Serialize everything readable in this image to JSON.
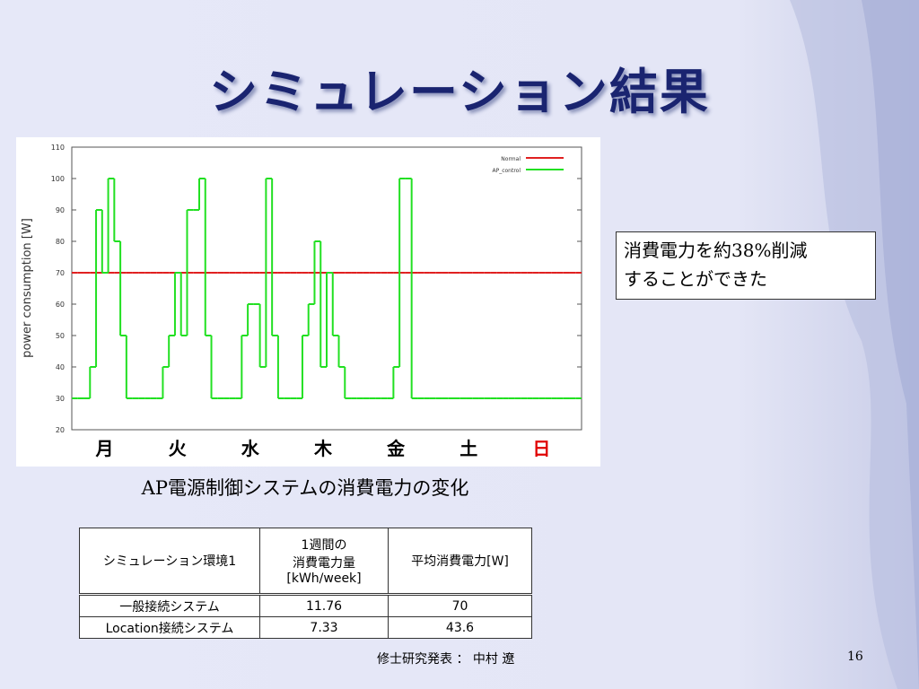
{
  "title": "シミュレーション結果",
  "chart_data": {
    "type": "line",
    "ylabel": "power consumption [W]",
    "ylim": [
      20,
      110
    ],
    "yticks": [
      20,
      30,
      40,
      50,
      60,
      70,
      80,
      90,
      100,
      110
    ],
    "x_labels": [
      "月",
      "火",
      "水",
      "木",
      "金",
      "土",
      "日"
    ],
    "x_label_colors": [
      "#000000",
      "#000000",
      "#000000",
      "#000000",
      "#000000",
      "#000000",
      "#e00000"
    ],
    "legend": "top-right",
    "grid": false,
    "series": [
      {
        "name": "Normal",
        "color": "#e02020",
        "values": [
          70,
          70,
          70,
          70,
          70,
          70,
          70,
          70,
          70,
          70,
          70,
          70,
          70,
          70,
          70,
          70,
          70,
          70,
          70,
          70,
          70,
          70,
          70,
          70,
          70,
          70,
          70,
          70,
          70,
          70,
          70,
          70,
          70,
          70,
          70,
          70,
          70,
          70,
          70,
          70,
          70,
          70,
          70,
          70,
          70,
          70,
          70,
          70,
          70,
          70,
          70,
          70,
          70,
          70,
          70,
          70,
          70,
          70,
          70,
          70,
          70,
          70,
          70,
          70,
          70,
          70,
          70,
          70,
          70,
          70,
          70,
          70,
          70,
          70,
          70,
          70,
          70,
          70,
          70,
          70,
          70,
          70,
          70,
          70
        ]
      },
      {
        "name": "AP_control",
        "color": "#22e022",
        "values": [
          30,
          30,
          30,
          40,
          90,
          70,
          100,
          80,
          50,
          30,
          30,
          30,
          30,
          30,
          30,
          40,
          50,
          70,
          50,
          90,
          90,
          100,
          50,
          30,
          30,
          30,
          30,
          30,
          50,
          60,
          60,
          40,
          100,
          50,
          30,
          30,
          30,
          30,
          50,
          60,
          80,
          40,
          70,
          50,
          40,
          30,
          30,
          30,
          30,
          30,
          30,
          30,
          30,
          40,
          100,
          100,
          30,
          30,
          30,
          30,
          30,
          30,
          30,
          30,
          30,
          30,
          30,
          30,
          30,
          30,
          30,
          30,
          30,
          30,
          30,
          30,
          30,
          30,
          30,
          30,
          30,
          30,
          30,
          30
        ]
      }
    ]
  },
  "callout": [
    "消費電力を約38%削減",
    "することができた"
  ],
  "caption": "AP電源制御システムの消費電力の変化",
  "table": {
    "header": [
      "シミュレーション環境1",
      "1週間の\n消費電力量\n[kWh/week]",
      "平均消費電力[W]"
    ],
    "rows": [
      [
        "一般接続システム",
        "11.76",
        "70"
      ],
      [
        "Location接続システム",
        "7.33",
        "43.6"
      ]
    ]
  },
  "footer": "修士研究発表 ： 中村 遼",
  "page_number": "16"
}
